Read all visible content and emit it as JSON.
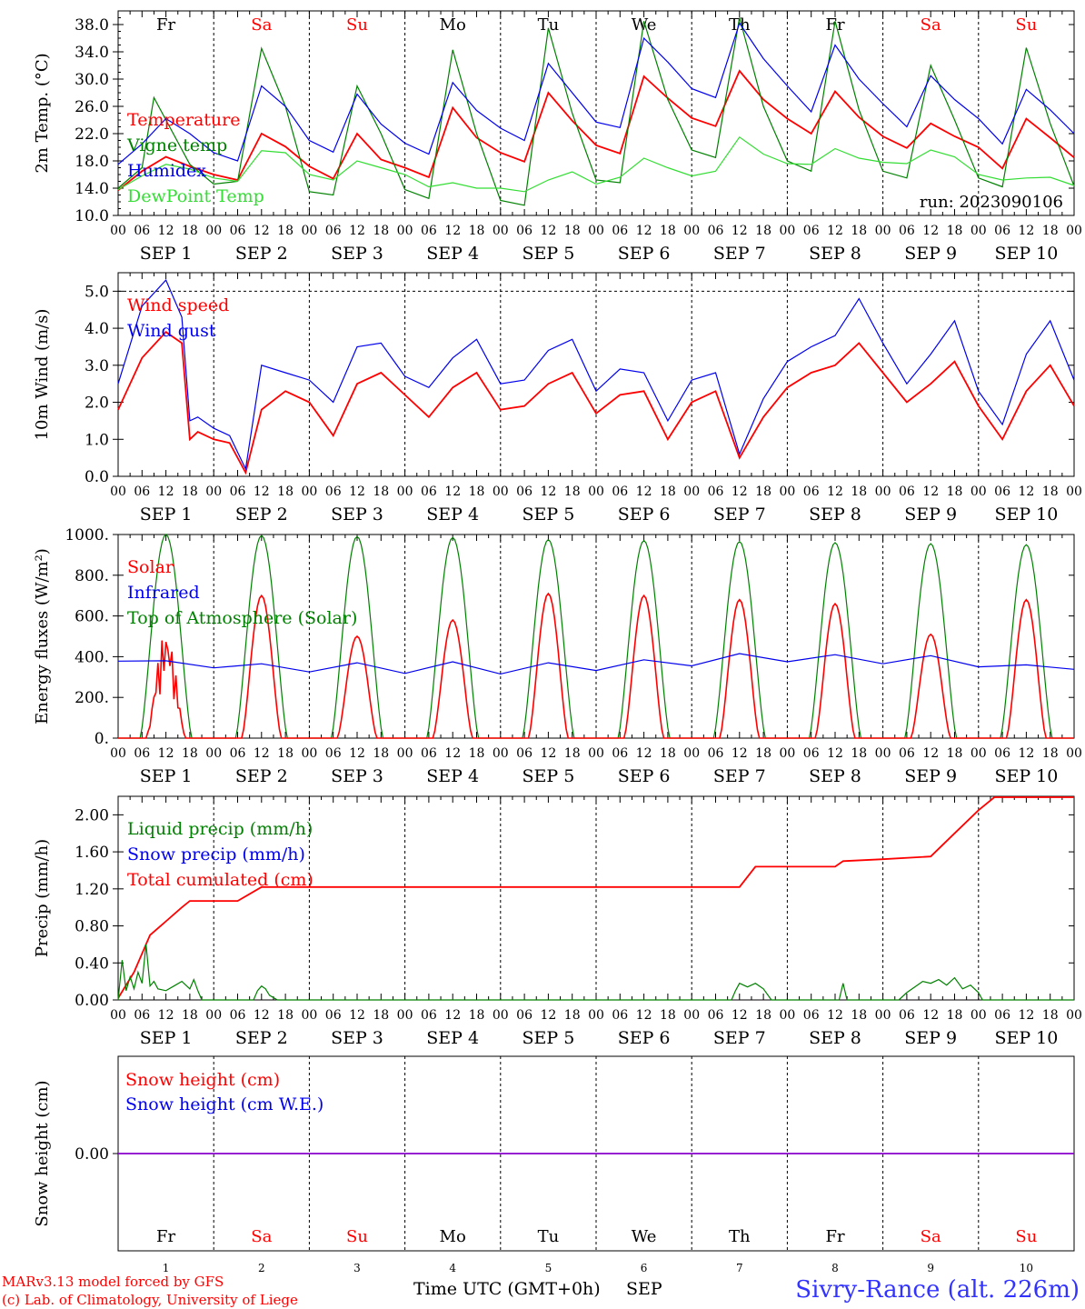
{
  "colors": {
    "red": "#ff0000",
    "green": "#008000",
    "lightgreen": "#33dd33",
    "blue": "#0000ee",
    "purple": "#8800cc",
    "black": "#000000"
  },
  "common": {
    "hour_labels": [
      "00",
      "06",
      "12",
      "18"
    ],
    "date_labels": [
      "SEP  1",
      "SEP  2",
      "SEP  3",
      "SEP  4",
      "SEP  5",
      "SEP  6",
      "SEP  7",
      "SEP  8",
      "SEP  9",
      "SEP 10"
    ],
    "day_names": [
      {
        "text": "Fr",
        "color": "black"
      },
      {
        "text": "Sa",
        "color": "red"
      },
      {
        "text": "Su",
        "color": "red"
      },
      {
        "text": "Mo",
        "color": "black"
      },
      {
        "text": "Tu",
        "color": "black"
      },
      {
        "text": "We",
        "color": "black"
      },
      {
        "text": "Th",
        "color": "black"
      },
      {
        "text": "Fr",
        "color": "black"
      },
      {
        "text": "Sa",
        "color": "red"
      },
      {
        "text": "Su",
        "color": "red"
      }
    ],
    "day_numbers": [
      "1",
      "2",
      "3",
      "4",
      "5",
      "6",
      "7",
      "8",
      "9",
      "10"
    ]
  },
  "footer": {
    "credit_line1": "MARv3.13 model forced by GFS",
    "credit_line2": "(c) Lab. of Climatology, University of Liege",
    "xlabel": "Time UTC (GMT+0h)",
    "month": "SEP",
    "station": "Sivry-Rance (alt. 226m)"
  },
  "chart_data": [
    {
      "type": "line",
      "ylabel": "2m Temp. (°C)",
      "ylim": [
        10,
        40
      ],
      "yticks": [
        "10.0",
        "14.0",
        "18.0",
        "22.0",
        "26.0",
        "30.0",
        "34.0",
        "38.0"
      ],
      "run_label": "run: 2023090106",
      "legend": [
        {
          "text": "Temperature",
          "color": "red"
        },
        {
          "text": "Vigne temp",
          "color": "green"
        },
        {
          "text": "Humidex",
          "color": "blue"
        },
        {
          "text": "DewPoint Temp",
          "color": "lightgreen"
        }
      ],
      "x_unit": "hours since 2023-09-01 00 UTC",
      "series": [
        {
          "name": "Temperature",
          "color": "red",
          "x": [
            0,
            6,
            12,
            18,
            24,
            30,
            36,
            42,
            48,
            54,
            60,
            66,
            72,
            78,
            84,
            90,
            96,
            102,
            108,
            114,
            120,
            126,
            132,
            138,
            144,
            150,
            156,
            162,
            168,
            174,
            180,
            186,
            192,
            198,
            204,
            210,
            216,
            222,
            228,
            234,
            240
          ],
          "y": [
            13.7,
            16.5,
            18.6,
            17.2,
            16.0,
            15.2,
            22.0,
            20.1,
            17.2,
            15.4,
            22.0,
            18.2,
            17.0,
            15.6,
            25.8,
            21.4,
            19.2,
            17.9,
            28.0,
            23.9,
            20.3,
            19.1,
            30.4,
            27.2,
            24.3,
            23.1,
            31.2,
            27.0,
            24.2,
            22.0,
            28.2,
            24.4,
            21.6,
            19.9,
            23.5,
            21.6,
            20.0,
            16.9,
            24.2,
            21.4,
            18.5
          ]
        },
        {
          "name": "Vigne temp",
          "color": "green",
          "x": [
            0,
            6,
            9,
            12,
            18,
            24,
            30,
            36,
            42,
            48,
            54,
            60,
            66,
            72,
            78,
            84,
            90,
            96,
            102,
            108,
            114,
            120,
            126,
            132,
            138,
            144,
            150,
            156,
            162,
            168,
            174,
            180,
            186,
            192,
            198,
            204,
            210,
            216,
            222,
            228,
            234,
            240
          ],
          "y": [
            14.0,
            17.0,
            27.3,
            24.0,
            17.5,
            14.6,
            15.0,
            34.5,
            26.0,
            13.5,
            13.0,
            29.0,
            22.0,
            13.8,
            12.5,
            34.3,
            22.0,
            12.2,
            11.5,
            37.5,
            25.0,
            15.2,
            14.8,
            38.5,
            27.0,
            19.6,
            18.5,
            39.0,
            26.0,
            18.0,
            16.5,
            38.5,
            25.5,
            16.5,
            15.5,
            32.0,
            24.0,
            15.5,
            14.2,
            34.6,
            23.5,
            14.3
          ]
        },
        {
          "name": "Humidex",
          "color": "blue",
          "x": [
            0,
            6,
            12,
            18,
            24,
            30,
            36,
            42,
            48,
            54,
            60,
            66,
            72,
            78,
            84,
            90,
            96,
            102,
            108,
            114,
            120,
            126,
            132,
            138,
            144,
            150,
            156,
            162,
            168,
            174,
            180,
            186,
            192,
            198,
            204,
            210,
            216,
            222,
            228,
            234,
            240
          ],
          "y": [
            17.5,
            20.5,
            24.2,
            22.0,
            19.2,
            18.0,
            29.0,
            26.0,
            21.0,
            19.3,
            27.8,
            23.4,
            20.6,
            19.0,
            29.5,
            25.4,
            22.8,
            21.0,
            32.3,
            28.0,
            23.7,
            22.9,
            36.0,
            32.5,
            28.6,
            27.3,
            38.2,
            33.0,
            29.0,
            25.2,
            35.0,
            30.0,
            26.4,
            23.0,
            30.5,
            27.0,
            24.2,
            20.5,
            28.5,
            25.5,
            22.0
          ]
        },
        {
          "name": "DewPoint Temp",
          "color": "lightgreen",
          "x": [
            0,
            6,
            12,
            18,
            24,
            30,
            36,
            42,
            48,
            54,
            60,
            66,
            72,
            78,
            84,
            90,
            96,
            102,
            108,
            114,
            120,
            126,
            132,
            138,
            144,
            150,
            156,
            162,
            168,
            174,
            180,
            186,
            192,
            198,
            204,
            210,
            216,
            222,
            228,
            234,
            240
          ],
          "y": [
            13.8,
            15.8,
            17.5,
            16.8,
            15.5,
            15.0,
            19.5,
            19.2,
            16.0,
            15.2,
            18.0,
            17.0,
            16.0,
            14.2,
            14.8,
            14.0,
            14.0,
            13.5,
            15.2,
            16.4,
            14.6,
            15.6,
            18.4,
            17.0,
            15.8,
            16.5,
            21.5,
            19.0,
            17.6,
            17.5,
            19.8,
            18.4,
            17.8,
            17.6,
            19.6,
            18.6,
            16.0,
            15.2,
            15.5,
            15.6,
            14.4
          ]
        }
      ]
    },
    {
      "type": "line",
      "ylabel": "10m Wind (m/s)",
      "ylim": [
        0,
        5.5
      ],
      "yticks": [
        "0.0",
        "1.0",
        "2.0",
        "3.0",
        "4.0",
        "5.0"
      ],
      "legend": [
        {
          "text": "Wind speed",
          "color": "red"
        },
        {
          "text": "Wind gust",
          "color": "blue"
        }
      ],
      "series": [
        {
          "name": "Wind speed",
          "color": "red",
          "x": [
            0,
            6,
            12,
            16,
            18,
            20,
            24,
            28,
            32,
            36,
            42,
            48,
            54,
            60,
            66,
            72,
            78,
            84,
            90,
            96,
            102,
            108,
            114,
            120,
            126,
            132,
            138,
            144,
            150,
            156,
            162,
            168,
            174,
            180,
            186,
            192,
            198,
            204,
            210,
            216,
            222,
            228,
            234,
            240
          ],
          "y": [
            1.8,
            3.2,
            3.9,
            3.6,
            1.0,
            1.2,
            1.0,
            0.9,
            0.1,
            1.8,
            2.3,
            2.0,
            1.1,
            2.5,
            2.8,
            2.2,
            1.6,
            2.4,
            2.8,
            1.8,
            1.9,
            2.5,
            2.8,
            1.7,
            2.2,
            2.3,
            1.0,
            2.0,
            2.3,
            0.5,
            1.6,
            2.4,
            2.8,
            3.0,
            3.6,
            2.8,
            2.0,
            2.5,
            3.1,
            1.9,
            1.0,
            2.3,
            3.0,
            1.9
          ]
        },
        {
          "name": "Wind gust",
          "color": "blue",
          "x": [
            0,
            6,
            12,
            16,
            18,
            20,
            24,
            28,
            32,
            36,
            42,
            48,
            54,
            60,
            66,
            72,
            78,
            84,
            90,
            96,
            102,
            108,
            114,
            120,
            126,
            132,
            138,
            144,
            150,
            156,
            162,
            168,
            174,
            180,
            186,
            192,
            198,
            204,
            210,
            216,
            222,
            228,
            234,
            240
          ],
          "y": [
            2.5,
            4.6,
            5.3,
            4.3,
            1.5,
            1.6,
            1.3,
            1.1,
            0.2,
            3.0,
            2.8,
            2.6,
            2.0,
            3.5,
            3.6,
            2.7,
            2.4,
            3.2,
            3.7,
            2.5,
            2.6,
            3.4,
            3.7,
            2.3,
            2.9,
            2.8,
            1.5,
            2.6,
            2.8,
            0.6,
            2.1,
            3.1,
            3.5,
            3.8,
            4.8,
            3.6,
            2.5,
            3.3,
            4.2,
            2.3,
            1.4,
            3.3,
            4.2,
            2.6
          ]
        }
      ]
    },
    {
      "type": "line",
      "ylabel": "Energy fluxes (W/m²)",
      "ylim": [
        0,
        1000
      ],
      "yticks": [
        "0.",
        "200.",
        "400.",
        "600.",
        "800.",
        "1000."
      ],
      "legend": [
        {
          "text": "Solar",
          "color": "red"
        },
        {
          "text": "Infrared",
          "color": "blue"
        },
        {
          "text": "Top of Atmosphere (Solar)",
          "color": "green"
        }
      ],
      "solar_peaks": [
        520,
        700,
        500,
        580,
        710,
        700,
        680,
        660,
        510,
        680
      ],
      "toa_peaks": [
        1000,
        995,
        990,
        985,
        975,
        970,
        965,
        960,
        955,
        950
      ],
      "series": [
        {
          "name": "Infrared",
          "color": "blue",
          "x": [
            0,
            12,
            24,
            36,
            48,
            60,
            72,
            84,
            96,
            108,
            120,
            132,
            144,
            156,
            168,
            180,
            192,
            204,
            216,
            228,
            240
          ],
          "y": [
            378,
            380,
            345,
            365,
            325,
            370,
            318,
            375,
            315,
            370,
            332,
            385,
            355,
            415,
            375,
            410,
            365,
            405,
            350,
            360,
            338
          ]
        }
      ]
    },
    {
      "type": "line",
      "ylabel": "Precip (mm/h)",
      "ylim": [
        0,
        2.2
      ],
      "yticks": [
        "0.00",
        "0.40",
        "0.80",
        "1.20",
        "1.60",
        "2.00"
      ],
      "legend": [
        {
          "text": "Liquid precip (mm/h)",
          "color": "green"
        },
        {
          "text": "Snow precip (mm/h)",
          "color": "blue"
        },
        {
          "text": "Total cumulated (cm)",
          "color": "red"
        }
      ],
      "series": [
        {
          "name": "Total cumulated (cm)",
          "color": "red",
          "x": [
            0,
            4,
            8,
            12,
            16,
            18,
            24,
            30,
            36,
            60,
            84,
            108,
            132,
            156,
            160,
            168,
            180,
            182,
            192,
            204,
            210,
            216,
            220,
            240
          ],
          "y": [
            0.02,
            0.3,
            0.7,
            0.85,
            1.0,
            1.07,
            1.07,
            1.07,
            1.22,
            1.22,
            1.22,
            1.22,
            1.22,
            1.22,
            1.44,
            1.44,
            1.44,
            1.5,
            1.52,
            1.55,
            1.8,
            2.05,
            2.19,
            2.19
          ]
        },
        {
          "name": "Liquid precip (mm/h)",
          "color": "green",
          "x": [
            0,
            1,
            2,
            3,
            4,
            5,
            6,
            7,
            8,
            9,
            10,
            12,
            14,
            16,
            18,
            19,
            20,
            21,
            24,
            34,
            35,
            36,
            37,
            38,
            40,
            154,
            155,
            156,
            158,
            160,
            162,
            164,
            181,
            182,
            183,
            196,
            198,
            200,
            202,
            204,
            206,
            208,
            210,
            212,
            214,
            216,
            217,
            240
          ],
          "y": [
            0,
            0.43,
            0.1,
            0.25,
            0.12,
            0.3,
            0.18,
            0.6,
            0.15,
            0.2,
            0.12,
            0.1,
            0.15,
            0.2,
            0.12,
            0.22,
            0.1,
            0,
            0,
            0,
            0.1,
            0.15,
            0.12,
            0.05,
            0,
            0,
            0.1,
            0.18,
            0.14,
            0.18,
            0.12,
            0,
            0,
            0.18,
            0,
            0,
            0.08,
            0.14,
            0.2,
            0.18,
            0.22,
            0.16,
            0.24,
            0.12,
            0.16,
            0.08,
            0,
            0
          ]
        }
      ]
    },
    {
      "type": "line",
      "ylabel": "Snow height (cm)",
      "ylim": [
        -1,
        1
      ],
      "yticks": [
        "0.00"
      ],
      "legend": [
        {
          "text": "Snow height (cm)",
          "color": "red"
        },
        {
          "text": "Snow height (cm W.E.)",
          "color": "blue"
        }
      ],
      "series": [
        {
          "name": "Snow height",
          "color": "purple",
          "x": [
            0,
            240
          ],
          "y": [
            0,
            0
          ]
        }
      ]
    }
  ]
}
